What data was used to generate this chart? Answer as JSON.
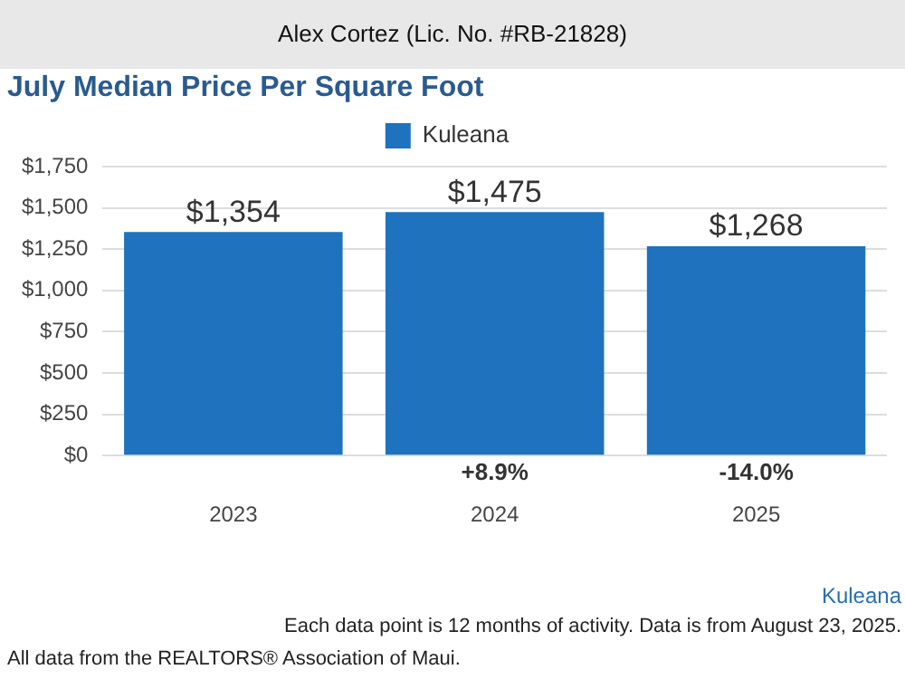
{
  "chart_data": {
    "type": "bar",
    "title": "July Median Price Per Square Foot",
    "subtitle": "Alex Cortez (Lic. No. #RB-21828)",
    "categories": [
      "2023",
      "2024",
      "2025"
    ],
    "series": [
      {
        "name": "Kuleana",
        "color": "#1f72bd",
        "values": [
          1354,
          1475,
          1268
        ],
        "value_labels": [
          "$1,354",
          "$1,475",
          "$1,268"
        ]
      }
    ],
    "ylim": [
      0,
      1750
    ],
    "yticks": [
      {
        "value": 0,
        "label": "$0"
      },
      {
        "value": 250,
        "label": "$250"
      },
      {
        "value": 500,
        "label": "$500"
      },
      {
        "value": 750,
        "label": "$750"
      },
      {
        "value": 1000,
        "label": "$1,000"
      },
      {
        "value": 1250,
        "label": "$1,250"
      },
      {
        "value": 1500,
        "label": "$1,500"
      },
      {
        "value": 1750,
        "label": "$1,750"
      }
    ],
    "grid": "y",
    "legend": "top",
    "annotations": [
      "+8.9%",
      "-14.0%",
      "Kuleana",
      "Each data point is 12 months of activity. Data is from August 23, 2025.",
      "All data from the REALTORS® Association of Maui."
    ]
  }
}
